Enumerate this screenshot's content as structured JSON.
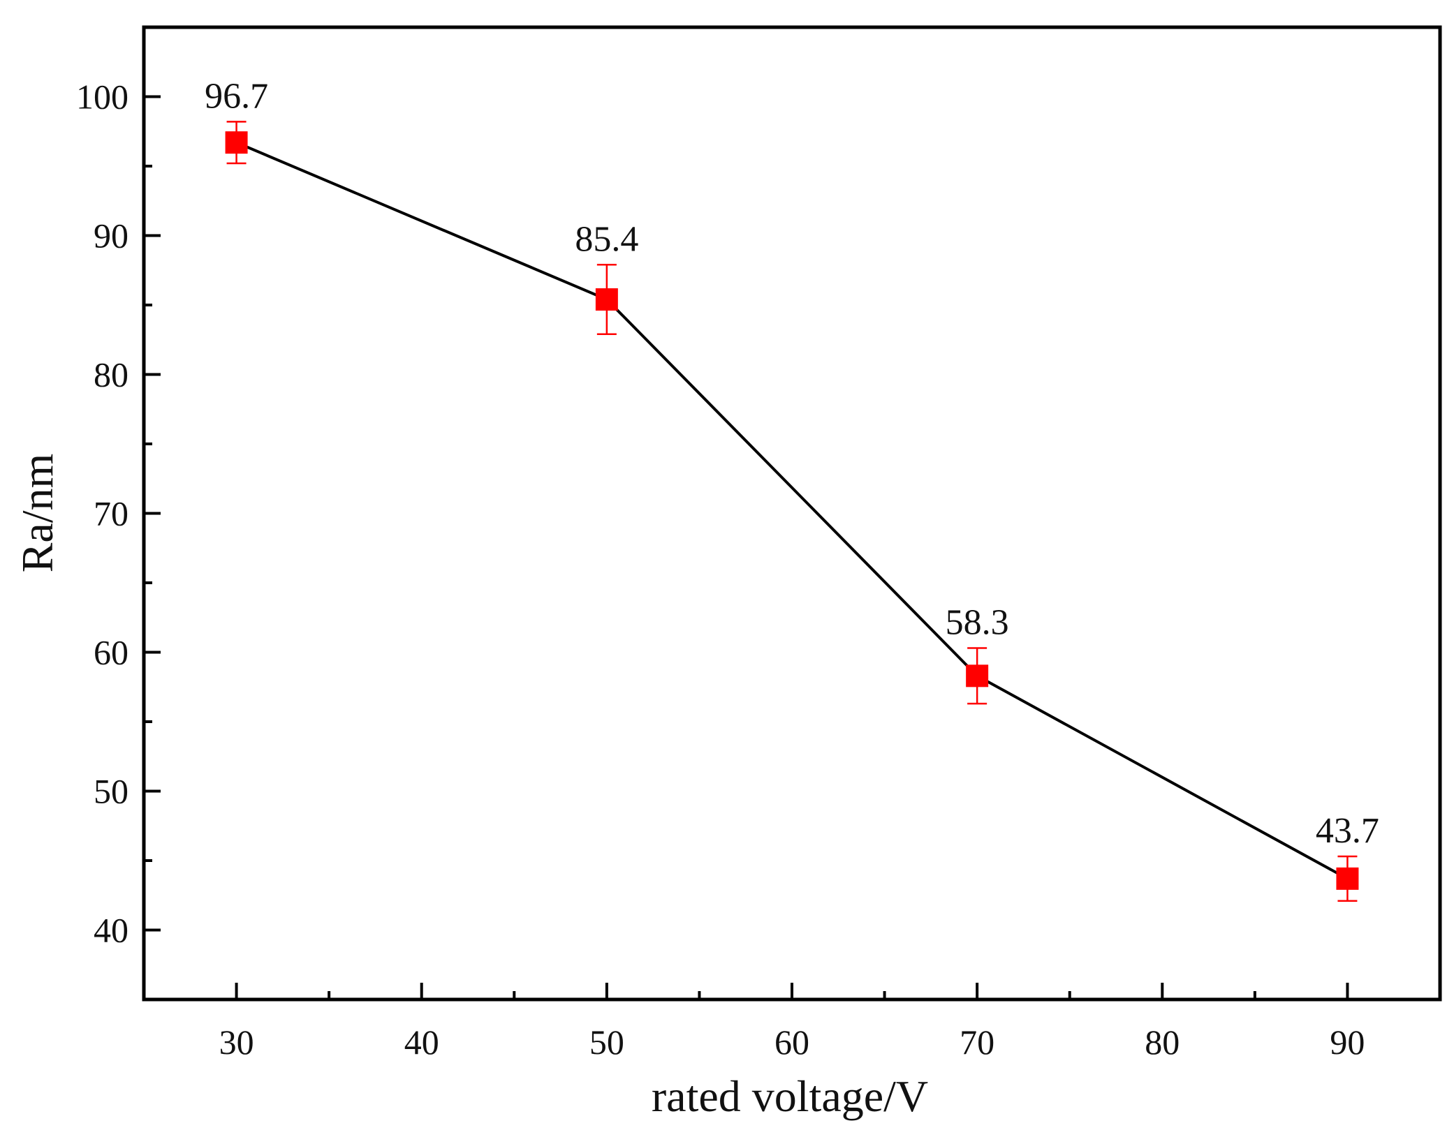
{
  "chart_data": {
    "type": "line",
    "title": "",
    "xlabel": "rated voltage/V",
    "ylabel": "Ra/nm",
    "xlim": [
      25,
      95
    ],
    "ylim": [
      35,
      105
    ],
    "xticks": [
      30,
      40,
      50,
      60,
      70,
      80,
      90
    ],
    "yticks": [
      40,
      50,
      60,
      70,
      80,
      90,
      100
    ],
    "x_minor_ticks": [
      35,
      45,
      55,
      65,
      75,
      85
    ],
    "y_minor_ticks": [
      45,
      55,
      65,
      75,
      85,
      95
    ],
    "grid": false,
    "series": [
      {
        "name": "Ra",
        "x": [
          30,
          50,
          70,
          90
        ],
        "values": [
          96.7,
          85.4,
          58.3,
          43.7
        ],
        "error_low": [
          95.2,
          82.9,
          56.3,
          42.1
        ],
        "error_high": [
          98.2,
          87.9,
          60.3,
          45.3
        ],
        "data_labels": [
          "96.7",
          "85.4",
          "58.3",
          "43.7"
        ],
        "line_color": "#000000",
        "marker": "square",
        "marker_color": "#ff0000",
        "errorbar_color": "#ff0000"
      }
    ]
  }
}
